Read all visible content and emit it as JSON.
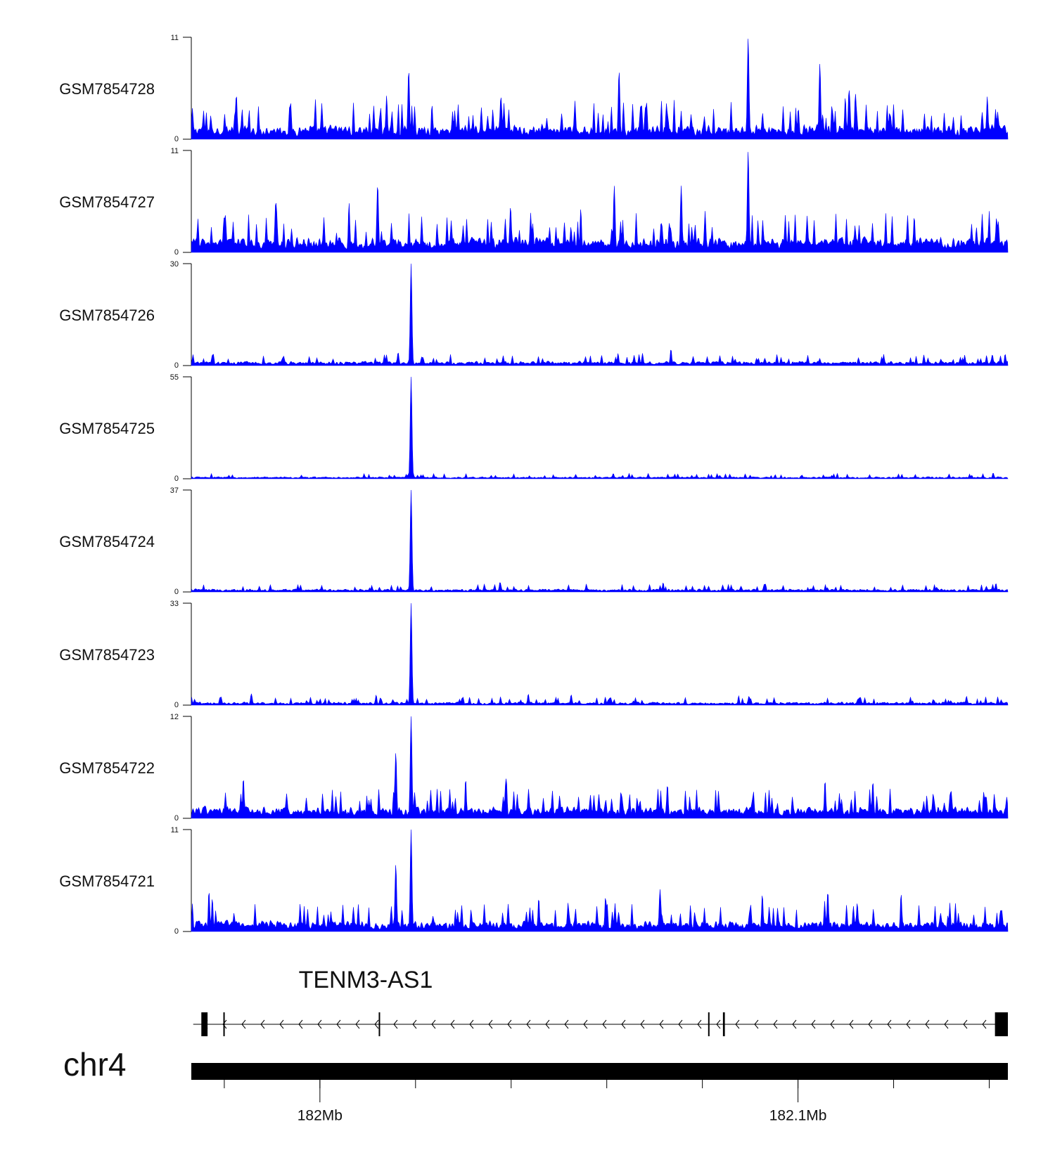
{
  "chart_data": {
    "type": "area",
    "series_color": "#0000ff",
    "region": {
      "start_bp": 181932600,
      "end_bp": 182103400
    },
    "tracks": [
      {
        "name": "GSM7854728",
        "ymax": 11,
        "ymin": 0,
        "baseline": 1.7,
        "peaks": [
          {
            "pos_bp": 182049000,
            "value": 11
          },
          {
            "pos_bp": 182064000,
            "value": 8.2
          },
          {
            "pos_bp": 181978000,
            "value": 7.5
          },
          {
            "pos_bp": 182022000,
            "value": 7.4
          }
        ]
      },
      {
        "name": "GSM7854727",
        "ymax": 11,
        "ymin": 0,
        "baseline": 1.8,
        "peaks": [
          {
            "pos_bp": 182049000,
            "value": 11
          },
          {
            "pos_bp": 181971500,
            "value": 7.4
          },
          {
            "pos_bp": 182021000,
            "value": 7.2
          },
          {
            "pos_bp": 182035000,
            "value": 7.2
          }
        ]
      },
      {
        "name": "GSM7854726",
        "ymax": 30,
        "ymin": 0,
        "baseline": 1.4,
        "peaks": [
          {
            "pos_bp": 181978500,
            "value": 30
          }
        ]
      },
      {
        "name": "GSM7854725",
        "ymax": 55,
        "ymin": 0,
        "baseline": 1.2,
        "peaks": [
          {
            "pos_bp": 181978500,
            "value": 55
          }
        ]
      },
      {
        "name": "GSM7854724",
        "ymax": 37,
        "ymin": 0,
        "baseline": 1.2,
        "peaks": [
          {
            "pos_bp": 181978500,
            "value": 37
          }
        ]
      },
      {
        "name": "GSM7854723",
        "ymax": 33,
        "ymin": 0,
        "baseline": 1.1,
        "peaks": [
          {
            "pos_bp": 181978500,
            "value": 33
          }
        ]
      },
      {
        "name": "GSM7854722",
        "ymax": 12,
        "ymin": 0,
        "baseline": 1.5,
        "peaks": [
          {
            "pos_bp": 181978500,
            "value": 12
          },
          {
            "pos_bp": 181975300,
            "value": 7.8
          }
        ]
      },
      {
        "name": "GSM7854721",
        "ymax": 11,
        "ymin": 0,
        "baseline": 1.3,
        "peaks": [
          {
            "pos_bp": 181978500,
            "value": 11
          },
          {
            "pos_bp": 181975300,
            "value": 7.3
          }
        ]
      }
    ],
    "gene": {
      "name": "TENM3-AS1",
      "strand": "-",
      "start_bp": 181933000,
      "end_bp": 182103400,
      "exons": [
        {
          "start_bp": 181934700,
          "end_bp": 181936000
        },
        {
          "start_bp": 181939300,
          "end_bp": 181939500
        },
        {
          "start_bp": 181971800,
          "end_bp": 181972000
        },
        {
          "start_bp": 182040700,
          "end_bp": 182040900
        },
        {
          "start_bp": 182043800,
          "end_bp": 182044200
        },
        {
          "start_bp": 182100700,
          "end_bp": 182103400
        }
      ]
    },
    "chromosome": {
      "name": "chr4",
      "ticks_bp": [
        181939500,
        181959500,
        181979500,
        181999500,
        182019500,
        182039500,
        182059500,
        182079500,
        182099500
      ],
      "tick_labels": [
        {
          "pos_bp": 181959500,
          "label": "182Mb"
        },
        {
          "pos_bp": 182059500,
          "label": "182.1Mb"
        }
      ]
    }
  }
}
